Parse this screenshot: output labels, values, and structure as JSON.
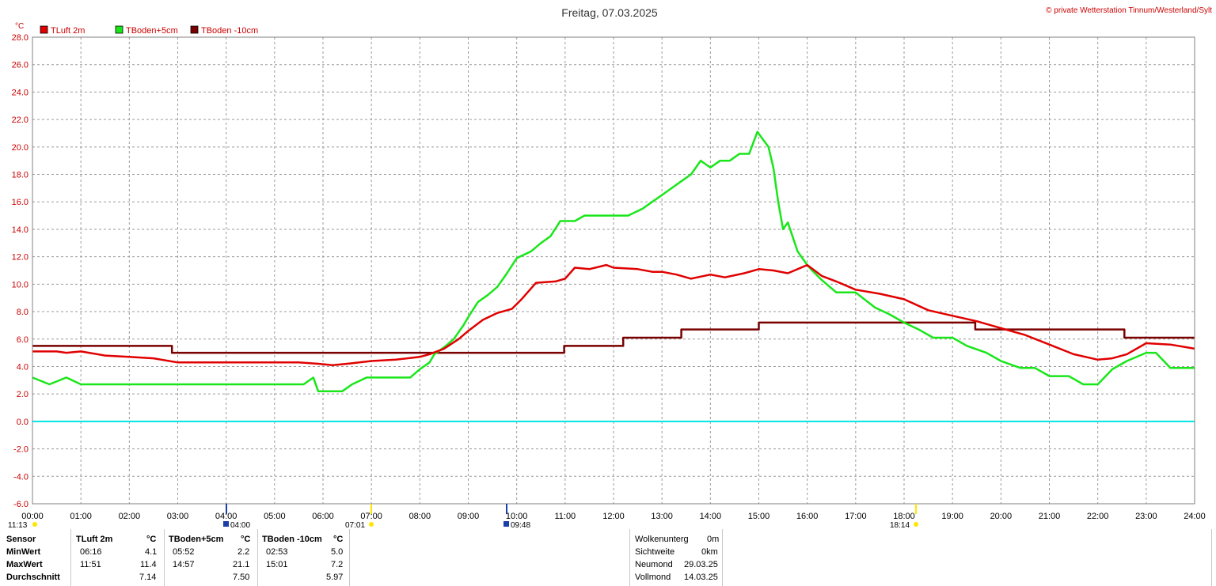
{
  "title": "Freitag, 07.03.2025",
  "copyright": "© private Wetterstation Tinnum/Westerland/Sylt",
  "unit": "°C",
  "colors": {
    "tluft": "#e00000",
    "tboden5": "#19e619",
    "tboden10": "#7a0000",
    "zero_line": "#00e5e5",
    "axis_text": "#cc0000",
    "grid": "#9a9a9a"
  },
  "chart_data": {
    "type": "line",
    "title": "Freitag, 07.03.2025",
    "ylabel": "°C",
    "xlabel": "",
    "xlim": [
      0,
      24
    ],
    "ylim": [
      -6,
      28
    ],
    "grid": true,
    "legend_position": "top-left",
    "y_ticks": [
      "28.0",
      "26.0",
      "24.0",
      "22.0",
      "20.0",
      "18.0",
      "16.0",
      "14.0",
      "12.0",
      "10.0",
      "8.0",
      "6.0",
      "4.0",
      "2.0",
      "0.0",
      "-2.0",
      "-4.0",
      "-6.0"
    ],
    "x_ticks": [
      "00:00",
      "01:00",
      "02:00",
      "03:00",
      "04:00",
      "05:00",
      "06:00",
      "07:00",
      "08:00",
      "09:00",
      "10:00",
      "11:00",
      "12:00",
      "13:00",
      "14:00",
      "15:00",
      "16:00",
      "17:00",
      "18:00",
      "19:00",
      "20:00",
      "21:00",
      "22:00",
      "23:00",
      "24:00"
    ],
    "series": [
      {
        "name": "TLuft 2m",
        "color": "#e00000",
        "x": [
          0,
          0.5,
          0.7,
          1.0,
          1.5,
          2.0,
          2.5,
          3.0,
          3.5,
          4.0,
          4.5,
          5.0,
          5.5,
          5.9,
          6.2,
          6.5,
          7.0,
          7.5,
          8.0,
          8.2,
          8.5,
          8.8,
          9.0,
          9.3,
          9.6,
          9.9,
          10.1,
          10.4,
          10.8,
          11.0,
          11.2,
          11.5,
          11.85,
          12.0,
          12.5,
          12.8,
          13.0,
          13.3,
          13.6,
          14.0,
          14.3,
          14.7,
          15.0,
          15.3,
          15.6,
          16.0,
          16.3,
          16.6,
          17.0,
          17.5,
          18.0,
          18.5,
          19.0,
          19.5,
          20.0,
          20.5,
          21.0,
          21.5,
          22.0,
          22.3,
          22.6,
          23.0,
          23.5,
          24.0
        ],
        "y": [
          5.1,
          5.1,
          5.0,
          5.1,
          4.8,
          4.7,
          4.6,
          4.3,
          4.3,
          4.3,
          4.3,
          4.3,
          4.3,
          4.2,
          4.1,
          4.2,
          4.4,
          4.5,
          4.7,
          4.9,
          5.3,
          6.0,
          6.6,
          7.4,
          7.9,
          8.2,
          8.9,
          10.1,
          10.2,
          10.4,
          11.2,
          11.1,
          11.4,
          11.2,
          11.1,
          10.9,
          10.9,
          10.7,
          10.4,
          10.7,
          10.5,
          10.8,
          11.1,
          11.0,
          10.8,
          11.4,
          10.6,
          10.2,
          9.6,
          9.3,
          8.9,
          8.1,
          7.7,
          7.3,
          6.8,
          6.3,
          5.6,
          4.9,
          4.5,
          4.6,
          4.9,
          5.7,
          5.6,
          5.3
        ]
      },
      {
        "name": "TBoden+5cm",
        "color": "#19e619",
        "x": [
          0,
          0.35,
          0.7,
          1.0,
          1.5,
          2.0,
          3.0,
          4.0,
          5.0,
          5.6,
          5.8,
          5.9,
          6.4,
          6.6,
          6.9,
          7.0,
          7.5,
          7.8,
          8.0,
          8.2,
          8.3,
          8.5,
          8.7,
          8.9,
          9.0,
          9.2,
          9.4,
          9.6,
          9.8,
          10.0,
          10.3,
          10.5,
          10.7,
          10.9,
          11.0,
          11.2,
          11.4,
          11.6,
          11.8,
          12.0,
          12.3,
          12.6,
          12.8,
          13.0,
          13.2,
          13.4,
          13.6,
          13.8,
          14.0,
          14.2,
          14.4,
          14.6,
          14.8,
          14.97,
          15.2,
          15.3,
          15.4,
          15.5,
          15.6,
          15.8,
          15.9,
          16.0,
          16.1,
          16.3,
          16.6,
          17.0,
          17.4,
          17.7,
          18.0,
          18.3,
          18.6,
          19.0,
          19.3,
          19.7,
          20.0,
          20.4,
          20.7,
          21.0,
          21.4,
          21.7,
          22.0,
          22.3,
          22.6,
          23.0,
          23.2,
          23.5,
          23.7,
          24.0
        ],
        "y": [
          3.2,
          2.7,
          3.2,
          2.7,
          2.7,
          2.7,
          2.7,
          2.7,
          2.7,
          2.7,
          3.2,
          2.2,
          2.2,
          2.7,
          3.2,
          3.2,
          3.2,
          3.2,
          3.8,
          4.3,
          4.9,
          5.4,
          6.0,
          7.0,
          7.6,
          8.7,
          9.2,
          9.8,
          10.8,
          11.9,
          12.4,
          13.0,
          13.5,
          14.6,
          14.6,
          14.6,
          15.0,
          15.0,
          15.0,
          15.0,
          15.0,
          15.5,
          16.0,
          16.5,
          17.0,
          17.5,
          18.0,
          19.0,
          18.5,
          19.0,
          19.0,
          19.5,
          19.5,
          21.1,
          20.0,
          18.5,
          16.0,
          14.0,
          14.5,
          12.4,
          11.9,
          11.4,
          11.0,
          10.3,
          9.4,
          9.4,
          8.3,
          7.8,
          7.2,
          6.7,
          6.1,
          6.1,
          5.5,
          5.0,
          4.4,
          3.9,
          3.9,
          3.3,
          3.3,
          2.7,
          2.7,
          3.8,
          4.4,
          5.0,
          5.0,
          3.9,
          3.9,
          3.9
        ]
      },
      {
        "name": "TBoden -10cm",
        "color": "#7a0000",
        "x": [
          0,
          2.88,
          2.88,
          8.0,
          8.3,
          10.98,
          10.98,
          12.2,
          12.2,
          13.4,
          13.4,
          15.0,
          15.0,
          18.0,
          19.47,
          19.47,
          22.55,
          22.55,
          24.0
        ],
        "y": [
          5.5,
          5.5,
          5.0,
          5.0,
          5.0,
          5.0,
          5.5,
          5.5,
          6.1,
          6.1,
          6.7,
          6.7,
          7.2,
          7.2,
          7.2,
          6.7,
          6.7,
          6.1,
          6.1
        ]
      }
    ]
  },
  "legend": [
    {
      "label": "TLuft 2m",
      "color": "#e00000"
    },
    {
      "label": "TBoden+5cm",
      "color": "#19e619"
    },
    {
      "label": "TBoden -10cm",
      "color": "#7a0000"
    }
  ],
  "sun_moon": {
    "moonset": "11:13",
    "moonrise": "04:00",
    "sunrise": "07:01",
    "moon_event": "09:48",
    "sunset": "18:14"
  },
  "stats": {
    "header": {
      "sensor": "Sensor",
      "tluft": "TLuft 2m",
      "unit1": "°C",
      "tboden5": "TBoden+5cm",
      "unit2": "°C",
      "tboden10": "TBoden -10cm",
      "unit3": "°C"
    },
    "min": {
      "label": "MinWert",
      "tluft_time": "06:16",
      "tluft_val": "4.1",
      "tb5_time": "05:52",
      "tb5_val": "2.2",
      "tb10_time": "02:53",
      "tb10_val": "5.0"
    },
    "max": {
      "label": "MaxWert",
      "tluft_time": "11:51",
      "tluft_val": "11.4",
      "tb5_time": "14:57",
      "tb5_val": "21.1",
      "tb10_time": "15:01",
      "tb10_val": "7.2"
    },
    "avg": {
      "label": "Durchschnitt",
      "tluft_val": "7.14",
      "tb5_val": "7.50",
      "tb10_val": "5.97"
    }
  },
  "info": {
    "cloud_label": "Wolkenunterg",
    "cloud_val": "0m",
    "vis_label": "Sichtweite",
    "vis_val": "0km",
    "newmoon_label": "Neumond",
    "newmoon_val": "29.03.25",
    "fullmoon_label": "Vollmond",
    "fullmoon_val": "14.03.25"
  }
}
